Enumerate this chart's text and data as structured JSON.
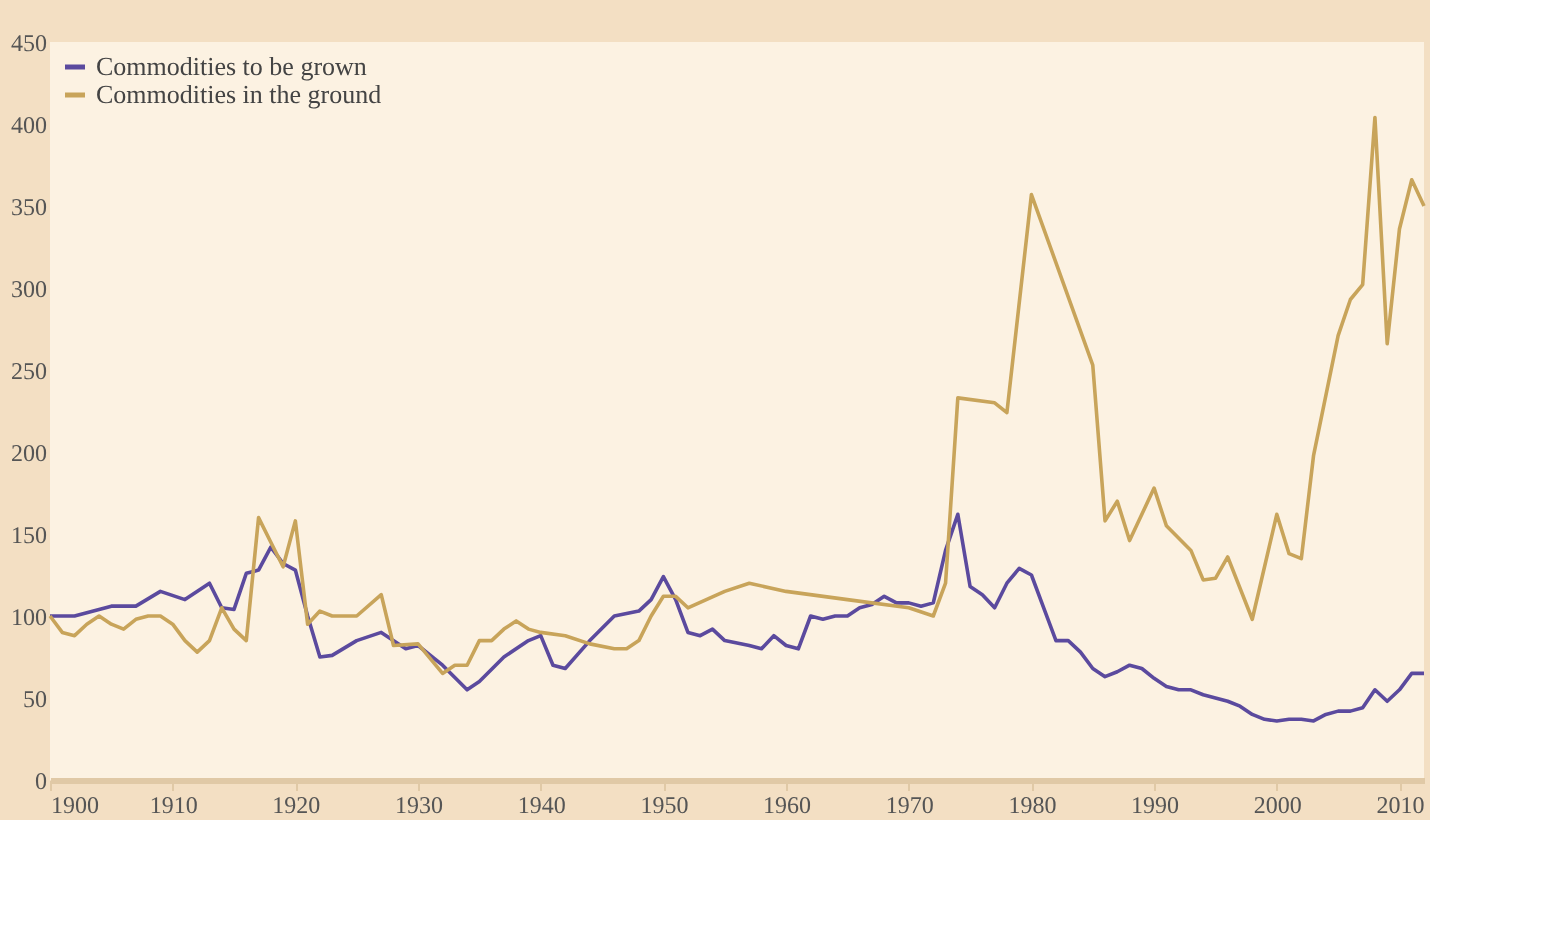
{
  "chart_data": {
    "type": "line",
    "xlim": [
      1900,
      2012
    ],
    "xticks": [
      1900,
      1910,
      1920,
      1930,
      1940,
      1950,
      1960,
      1970,
      1980,
      1990,
      2000,
      2010
    ],
    "ylim": [
      0,
      450
    ],
    "yticks": [
      0,
      50,
      100,
      150,
      200,
      250,
      300,
      350,
      400,
      450
    ],
    "grid": false,
    "legend": "top left",
    "marker": "none",
    "line_style": "solid",
    "series": [
      {
        "name": "Commodities to be grown",
        "color": "#5b4a9e",
        "x": [
          1900,
          1902,
          1905,
          1907,
          1909,
          1911,
          1913,
          1914,
          1915,
          1916,
          1917,
          1918,
          1919,
          1920,
          1921,
          1922,
          1923,
          1925,
          1927,
          1929,
          1930,
          1932,
          1934,
          1935,
          1937,
          1939,
          1940,
          1941,
          1942,
          1944,
          1946,
          1948,
          1949,
          1950,
          1951,
          1952,
          1953,
          1954,
          1955,
          1957,
          1958,
          1959,
          1960,
          1961,
          1962,
          1963,
          1964,
          1965,
          1966,
          1967,
          1968,
          1969,
          1970,
          1971,
          1972,
          1973,
          1974,
          1975,
          1976,
          1977,
          1978,
          1979,
          1980,
          1981,
          1982,
          1983,
          1984,
          1985,
          1986,
          1987,
          1988,
          1989,
          1990,
          1991,
          1992,
          1993,
          1994,
          1995,
          1996,
          1997,
          1998,
          1999,
          2000,
          2001,
          2002,
          2003,
          2004,
          2005,
          2006,
          2007,
          2008,
          2009,
          2010,
          2011,
          2012
        ],
        "values": [
          100,
          100,
          106,
          106,
          115,
          110,
          120,
          105,
          104,
          126,
          128,
          142,
          132,
          128,
          100,
          75,
          76,
          85,
          90,
          80,
          82,
          70,
          55,
          60,
          75,
          85,
          88,
          70,
          68,
          85,
          100,
          103,
          110,
          124,
          110,
          90,
          88,
          92,
          85,
          82,
          80,
          88,
          82,
          80,
          100,
          98,
          100,
          100,
          105,
          107,
          112,
          108,
          108,
          106,
          108,
          140,
          162,
          118,
          113,
          105,
          120,
          129,
          125,
          105,
          85,
          85,
          78,
          68,
          63,
          66,
          70,
          68,
          62,
          57,
          55,
          55,
          52,
          50,
          48,
          45,
          40,
          37,
          36,
          37,
          37,
          36,
          40,
          42,
          42,
          44,
          55,
          48,
          55,
          65,
          65
        ]
      },
      {
        "name": "Commodities in the ground",
        "color": "#c8a45a",
        "x": [
          1900,
          1901,
          1902,
          1903,
          1904,
          1905,
          1906,
          1907,
          1908,
          1909,
          1910,
          1911,
          1912,
          1913,
          1914,
          1915,
          1916,
          1917,
          1918,
          1919,
          1920,
          1921,
          1922,
          1923,
          1925,
          1927,
          1928,
          1930,
          1932,
          1933,
          1934,
          1935,
          1936,
          1937,
          1938,
          1939,
          1940,
          1942,
          1944,
          1946,
          1947,
          1948,
          1949,
          1950,
          1951,
          1952,
          1955,
          1957,
          1960,
          1965,
          1970,
          1972,
          1973,
          1974,
          1977,
          1978,
          1980,
          1985,
          1986,
          1987,
          1988,
          1990,
          1991,
          1993,
          1994,
          1995,
          1996,
          1998,
          2000,
          2001,
          2002,
          2003,
          2005,
          2006,
          2007,
          2008,
          2009,
          2010,
          2011,
          2012
        ],
        "values": [
          100,
          90,
          88,
          95,
          100,
          95,
          92,
          98,
          100,
          100,
          95,
          85,
          78,
          85,
          105,
          92,
          85,
          160,
          145,
          130,
          158,
          95,
          103,
          100,
          100,
          113,
          82,
          83,
          65,
          70,
          70,
          85,
          85,
          92,
          97,
          92,
          90,
          88,
          83,
          80,
          80,
          85,
          100,
          112,
          112,
          105,
          115,
          120,
          115,
          110,
          105,
          100,
          120,
          233,
          230,
          224,
          357,
          253,
          158,
          170,
          146,
          178,
          155,
          140,
          122,
          123,
          136,
          98,
          162,
          138,
          135,
          198,
          271,
          293,
          302,
          404,
          266,
          336,
          366,
          350
        ]
      }
    ]
  }
}
